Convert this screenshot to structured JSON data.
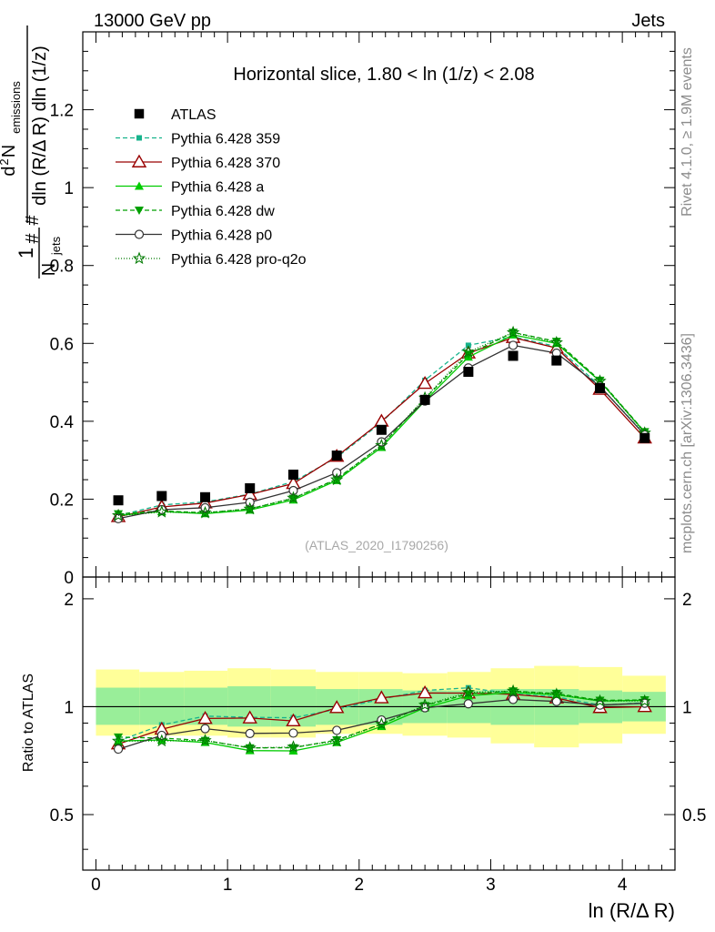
{
  "header": {
    "left": "13000 GeV pp",
    "right": "Jets"
  },
  "side_labels": {
    "rivet": "Rivet 4.1.0, ≥ 1.9M events",
    "mcplots": "mcplots.cern.ch [arXiv:1306.3436]"
  },
  "chart_data": {
    "type": "line",
    "title": "Horizontal slice, 1.80 < ln (1/z) < 2.08",
    "analysis_id": "(ATLAS_2020_I1790256)",
    "xlabel": "ln (R/Δ R)",
    "ylabel": "1/N_jets d²N_emissions / dln(R/ΔR) dln(1/z)",
    "ylabel_parts": {
      "frac1_num": "1",
      "frac1_den": "N",
      "frac1_den_sub": "jets",
      "hash_top": "#",
      "hash_bottom": "#",
      "frac2_num": "d",
      "frac2_num_sup": "2",
      "frac2_num_rest": " N",
      "frac2_num_sub": "emissions",
      "frac2_den": "dln (R/Δ R) dln (1/z)"
    },
    "ratio_ylabel": "Ratio to ATLAS",
    "xlim": [
      -0.1,
      4.4
    ],
    "ylim": [
      0,
      1.4
    ],
    "ratio_ylim": [
      0.35,
      2.3
    ],
    "x_ticks": [
      0,
      1,
      2,
      3,
      4
    ],
    "x_tick_labels": [
      "0",
      "1",
      "2",
      "3",
      "4"
    ],
    "y_ticks": [
      0,
      0.2,
      0.4,
      0.6,
      0.8,
      1,
      1.2
    ],
    "y_tick_labels": [
      "0",
      "0.2",
      "0.4",
      "0.6",
      "0.8",
      "1",
      "1.2"
    ],
    "ratio_ticks": [
      0.5,
      1,
      2
    ],
    "ratio_tick_labels": [
      "0.5",
      "1",
      "2"
    ],
    "x": [
      0.17,
      0.5,
      0.83,
      1.17,
      1.5,
      1.83,
      2.17,
      2.5,
      2.83,
      3.17,
      3.5,
      3.83,
      4.17
    ],
    "bin_edges": [
      0.0,
      0.33,
      0.67,
      1.0,
      1.33,
      1.67,
      2.0,
      2.33,
      2.67,
      3.0,
      3.33,
      3.67,
      4.0,
      4.33
    ],
    "data": {
      "name": "ATLAS",
      "values": [
        0.197,
        0.208,
        0.205,
        0.228,
        0.263,
        0.312,
        0.378,
        0.455,
        0.527,
        0.568,
        0.556,
        0.485,
        0.357
      ],
      "band_stat_lo": [
        0.89,
        0.89,
        0.89,
        0.88,
        0.88,
        0.89,
        0.89,
        0.9,
        0.9,
        0.89,
        0.89,
        0.9,
        0.91
      ],
      "band_stat_hi": [
        1.13,
        1.13,
        1.13,
        1.14,
        1.14,
        1.12,
        1.12,
        1.11,
        1.11,
        1.12,
        1.12,
        1.11,
        1.1
      ],
      "band_tot_lo": [
        0.83,
        0.83,
        0.83,
        0.82,
        0.82,
        0.84,
        0.84,
        0.83,
        0.82,
        0.79,
        0.77,
        0.79,
        0.84
      ],
      "band_tot_hi": [
        1.27,
        1.25,
        1.26,
        1.28,
        1.27,
        1.25,
        1.25,
        1.24,
        1.25,
        1.28,
        1.3,
        1.29,
        1.22
      ]
    },
    "series": [
      {
        "name": "Pythia 6.428 359",
        "color": "#17b38c",
        "dash": "5,3",
        "marker": "smallsquare",
        "values": [
          0.158,
          0.185,
          0.193,
          0.213,
          0.245,
          0.307,
          0.397,
          0.505,
          0.595,
          0.617,
          0.592,
          0.49,
          0.366
        ]
      },
      {
        "name": "Pythia 6.428 370",
        "color": "#990000",
        "dash": "",
        "marker": "opentriangle",
        "values": [
          0.155,
          0.18,
          0.19,
          0.212,
          0.24,
          0.31,
          0.4,
          0.497,
          0.575,
          0.615,
          0.588,
          0.482,
          0.357
        ]
      },
      {
        "name": "Pythia 6.428 a",
        "color": "#00cc00",
        "dash": "",
        "marker": "filltriangle",
        "values": [
          0.158,
          0.168,
          0.163,
          0.172,
          0.198,
          0.248,
          0.333,
          0.452,
          0.565,
          0.622,
          0.6,
          0.503,
          0.372
        ]
      },
      {
        "name": "Pythia 6.428 dw",
        "color": "#00a000",
        "dash": "5,3",
        "marker": "downtriangle",
        "values": [
          0.162,
          0.17,
          0.165,
          0.175,
          0.202,
          0.252,
          0.338,
          0.458,
          0.572,
          0.628,
          0.605,
          0.505,
          0.373
        ]
      },
      {
        "name": "Pythia 6.428 p0",
        "color": "#333333",
        "dash": "",
        "marker": "opencircle",
        "values": [
          0.15,
          0.173,
          0.178,
          0.192,
          0.222,
          0.268,
          0.347,
          0.452,
          0.537,
          0.595,
          0.575,
          0.49,
          0.365
        ]
      },
      {
        "name": "Pythia 6.428 pro-q2o",
        "color": "#007a00",
        "dash": "1,2",
        "marker": "star",
        "values": [
          0.158,
          0.167,
          0.165,
          0.175,
          0.203,
          0.25,
          0.338,
          0.46,
          0.578,
          0.628,
          0.602,
          0.503,
          0.37
        ]
      }
    ]
  }
}
